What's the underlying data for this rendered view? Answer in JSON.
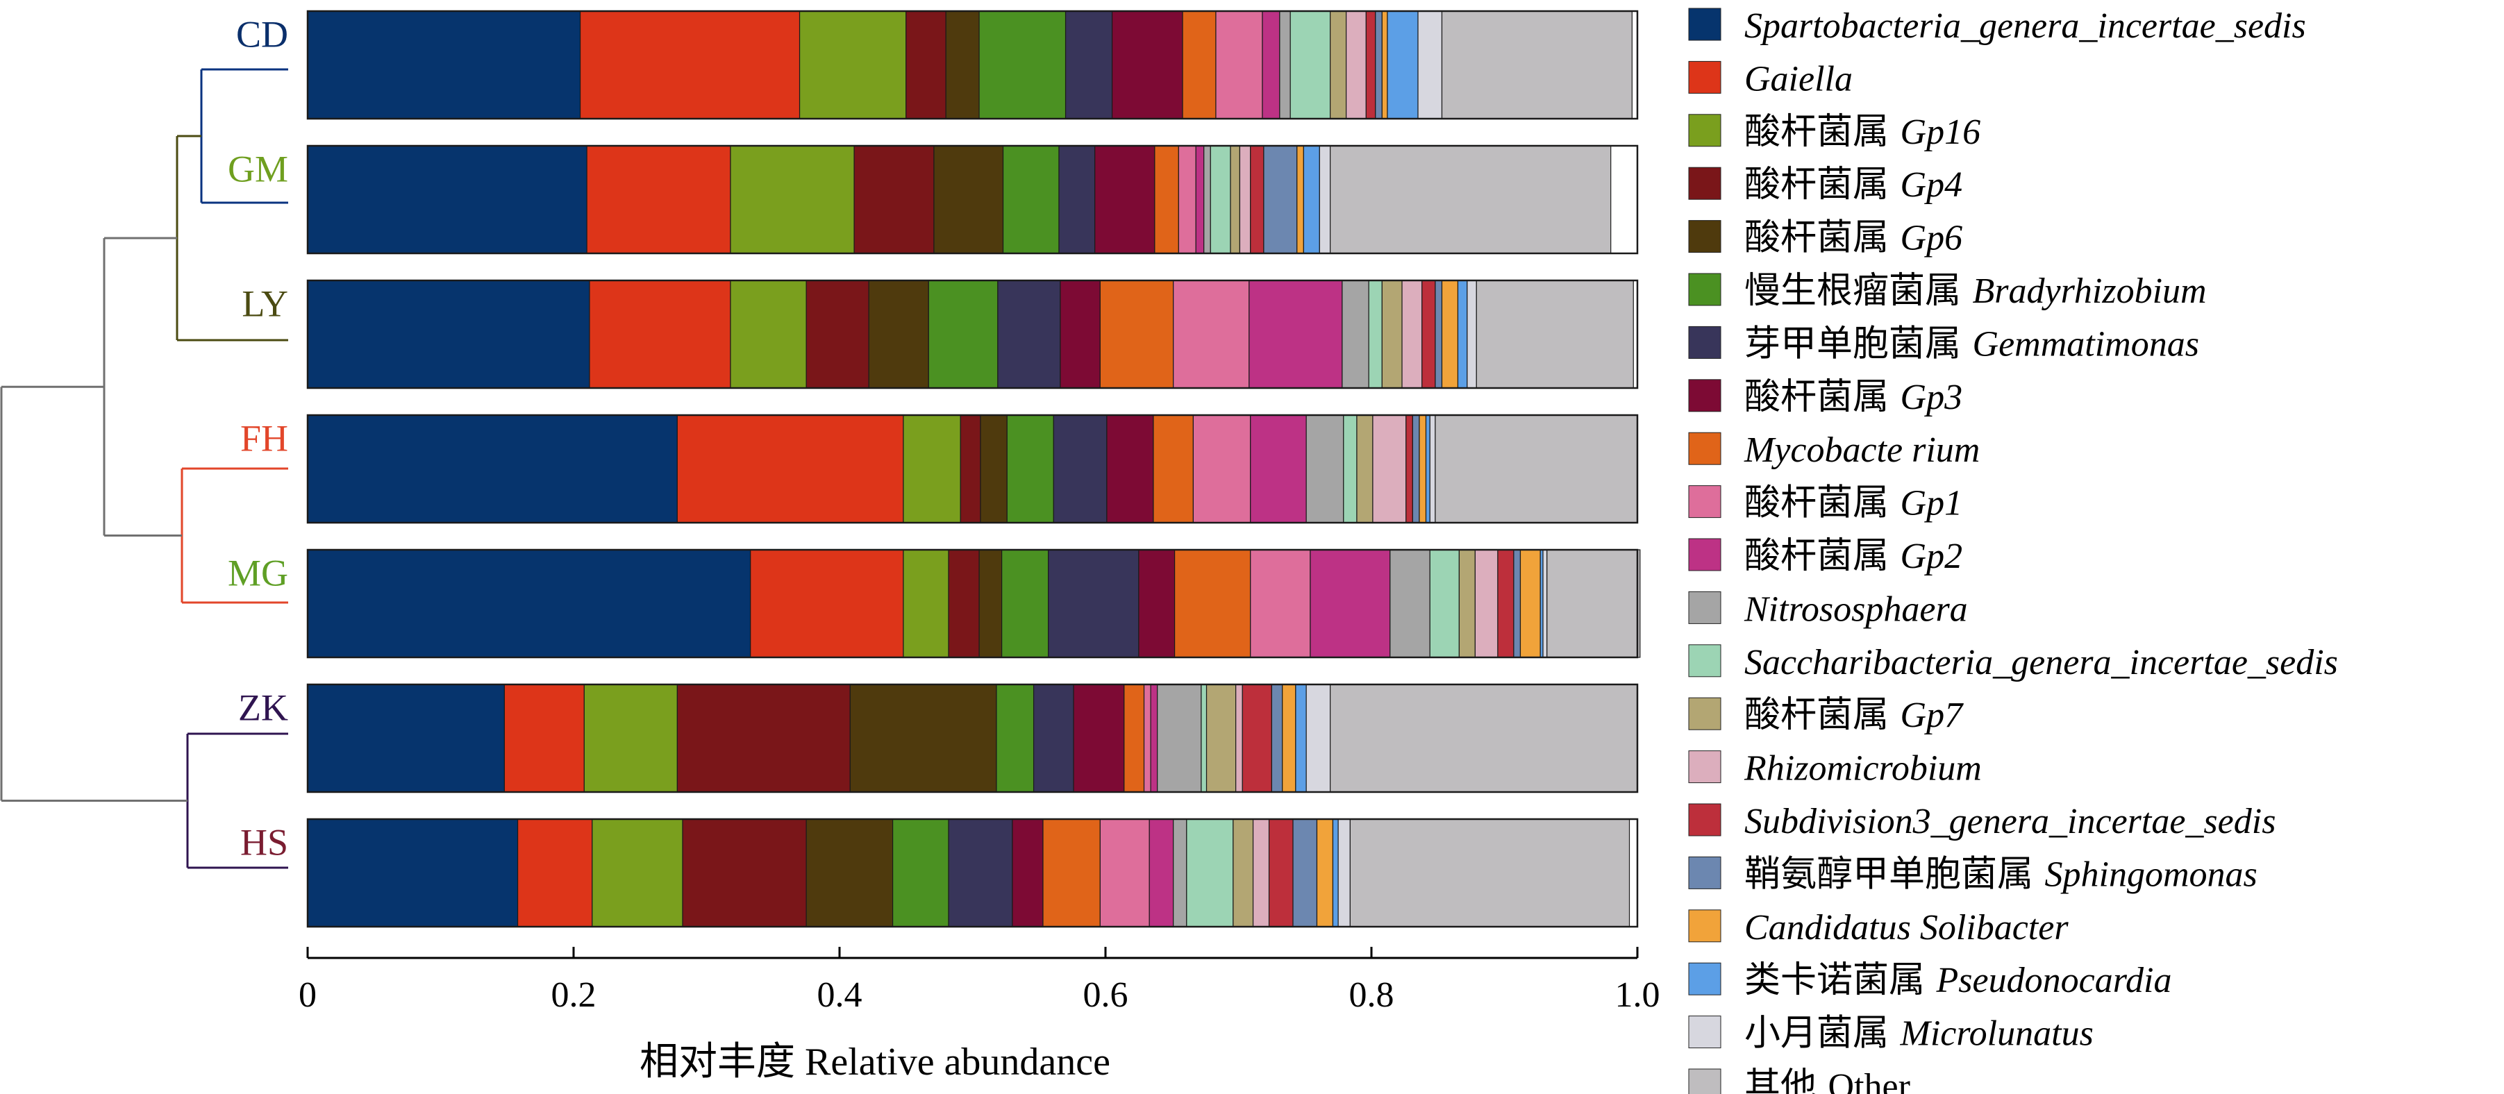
{
  "chart_data": {
    "type": "bar",
    "orientation": "horizontal",
    "stacked": true,
    "xlabel": "相对丰度 Relative abundance",
    "xlim": [
      0,
      1.0
    ],
    "xticks": [
      0,
      0.2,
      0.4,
      0.6,
      0.8,
      1.0
    ],
    "xtick_labels": [
      "0",
      "0.2",
      "0.4",
      "0.6",
      "0.8",
      "1.0"
    ],
    "grid": false,
    "legend_position": "right",
    "categories": [
      "CD",
      "GM",
      "LY",
      "FH",
      "MG",
      "ZK",
      "HS"
    ],
    "category_colors": [
      "#0a2f6b",
      "#6f9f1f",
      "#4b4b12",
      "#e2462a",
      "#5f9f25",
      "#2f1450",
      "#7a1c30"
    ],
    "dendrogram": {
      "clusters": [
        {
          "members": [
            "CD",
            "GM"
          ],
          "color": "#0a3380"
        },
        {
          "members": [
            "CD",
            "GM",
            "LY"
          ],
          "color": "#4b4b12"
        },
        {
          "members": [
            "FH",
            "MG"
          ],
          "color": "#e2462a"
        },
        {
          "members": [
            "CD",
            "GM",
            "LY",
            "FH",
            "MG"
          ],
          "color": "#707070"
        },
        {
          "members": [
            "ZK",
            "HS"
          ],
          "color": "#2f1450"
        },
        {
          "members": [
            "CD",
            "GM",
            "LY",
            "FH",
            "MG",
            "ZK",
            "HS"
          ],
          "color": "#707070"
        }
      ]
    },
    "series": [
      {
        "name": "Spartobacteria_genera_incertae_sedis",
        "color": "#06346d",
        "values": [
          0.205,
          0.21,
          0.212,
          0.278,
          0.333,
          0.148,
          0.158
        ]
      },
      {
        "name": "Gaiella",
        "color": "#dd3519",
        "values": [
          0.165,
          0.108,
          0.106,
          0.17,
          0.115,
          0.06,
          0.056
        ]
      },
      {
        "name": "酸杆菌属 Gp16",
        "color": "#7a9f1e",
        "values": [
          0.08,
          0.093,
          0.057,
          0.043,
          0.034,
          0.07,
          0.068
        ]
      },
      {
        "name": "酸杆菌属 Gp4",
        "color": "#7a1619",
        "values": [
          0.03,
          0.06,
          0.047,
          0.015,
          0.023,
          0.13,
          0.093
        ]
      },
      {
        "name": "酸杆菌属 Gp6",
        "color": "#4f3a0d",
        "values": [
          0.025,
          0.052,
          0.045,
          0.02,
          0.017,
          0.11,
          0.065
        ]
      },
      {
        "name": "慢生根瘤菌属 Bradyrhizobium",
        "color": "#4b9122",
        "values": [
          0.065,
          0.042,
          0.052,
          0.035,
          0.035,
          0.028,
          0.042
        ]
      },
      {
        "name": "芽甲单胞菌属 Gemmatimonas",
        "color": "#38355a",
        "values": [
          0.035,
          0.027,
          0.047,
          0.04,
          0.068,
          0.03,
          0.048
        ]
      },
      {
        "name": "酸杆菌属 Gp3",
        "color": "#7d0a34",
        "values": [
          0.053,
          0.045,
          0.03,
          0.035,
          0.027,
          0.038,
          0.023
        ]
      },
      {
        "name": "Mycobacte rium",
        "color": "#e06419",
        "values": [
          0.025,
          0.018,
          0.055,
          0.03,
          0.057,
          0.015,
          0.043
        ]
      },
      {
        "name": "酸杆菌属 Gp1",
        "color": "#de6e9b",
        "values": [
          0.035,
          0.013,
          0.057,
          0.043,
          0.045,
          0.005,
          0.037
        ]
      },
      {
        "name": "酸杆菌属 Gp2",
        "color": "#bd3285",
        "values": [
          0.013,
          0.006,
          0.07,
          0.042,
          0.06,
          0.005,
          0.018
        ]
      },
      {
        "name": "Nitrososphaera",
        "color": "#a5a5a5",
        "values": [
          0.008,
          0.005,
          0.02,
          0.028,
          0.03,
          0.033,
          0.01
        ]
      },
      {
        "name": "Saccharibacteria_genera_incertae_sedis",
        "color": "#9cd4b4",
        "values": [
          0.03,
          0.015,
          0.01,
          0.01,
          0.022,
          0.004,
          0.035
        ]
      },
      {
        "name": "酸杆菌属 Gp7",
        "color": "#b3a673",
        "values": [
          0.012,
          0.007,
          0.015,
          0.012,
          0.012,
          0.022,
          0.015
        ]
      },
      {
        "name": "Rhizomicrobium",
        "color": "#dcaebd",
        "values": [
          0.015,
          0.008,
          0.015,
          0.025,
          0.017,
          0.005,
          0.012
        ]
      },
      {
        "name": "Subdivision3_genera_incertae_sedis",
        "color": "#bd2f3b",
        "values": [
          0.007,
          0.01,
          0.01,
          0.005,
          0.012,
          0.022,
          0.018
        ]
      },
      {
        "name": "鞘氨醇甲单胞菌属 Sphingomonas",
        "color": "#6c87b0",
        "values": [
          0.005,
          0.025,
          0.005,
          0.005,
          0.005,
          0.008,
          0.018
        ]
      },
      {
        "name": "Candidatus Solibacter",
        "color": "#f1a33a",
        "values": [
          0.004,
          0.005,
          0.012,
          0.005,
          0.015,
          0.01,
          0.012
        ]
      },
      {
        "name": "类卡诺菌属 Pseudonocardia",
        "color": "#5c9fe6",
        "values": [
          0.023,
          0.012,
          0.007,
          0.003,
          0.002,
          0.008,
          0.004
        ]
      },
      {
        "name": "小月菌属 Microlunatus",
        "color": "#d7d7df",
        "values": [
          0.018,
          0.008,
          0.007,
          0.004,
          0.003,
          0.018,
          0.009
        ]
      },
      {
        "name": "其他 Other",
        "color": "#bfbdbf",
        "values": [
          0.143,
          0.211,
          0.118,
          0.152,
          0.07,
          0.231,
          0.21
        ]
      }
    ]
  }
}
